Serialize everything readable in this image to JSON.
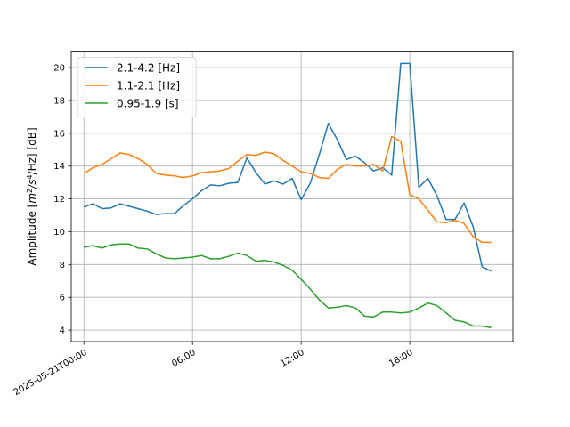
{
  "chart_data": {
    "type": "line",
    "title": "",
    "xlabel": "",
    "ylabel": "Amplitude [m²/s⁴/Hz] [dB]",
    "ylabel_parts": {
      "a": "Amplitude [",
      "b": "m",
      "c": "2",
      "d": "/s",
      "e": "4",
      "f": "/Hz] [dB]"
    },
    "grid": true,
    "legend_position": "top-left",
    "x_unit": "hours after 2025-05-21T00:00",
    "x_ticks": [
      {
        "value": 0,
        "label": "2025-05-21T00:00"
      },
      {
        "value": 6,
        "label": "06:00"
      },
      {
        "value": 12,
        "label": "12:00"
      },
      {
        "value": 18,
        "label": "18:00"
      }
    ],
    "y_ticks": [
      4,
      6,
      8,
      10,
      12,
      14,
      16,
      18,
      20
    ],
    "xlim": [
      -0.7,
      23.7
    ],
    "ylim": [
      3.3,
      21.0
    ],
    "x": [
      0,
      0.5,
      1,
      1.5,
      2,
      2.5,
      3,
      3.5,
      4,
      4.5,
      5,
      5.5,
      6,
      6.5,
      7,
      7.5,
      8,
      8.5,
      9,
      9.5,
      10,
      10.5,
      11,
      11.5,
      12,
      12.5,
      13,
      13.5,
      14,
      14.5,
      15,
      15.5,
      16,
      16.5,
      17,
      17.5,
      18,
      18.5,
      19,
      19.5,
      20,
      20.5,
      21,
      21.5,
      22,
      22.5
    ],
    "series": [
      {
        "name": "2.1-4.2 [Hz]",
        "color": "#1f77b4",
        "values": [
          11.5,
          11.7,
          11.4,
          11.45,
          11.7,
          11.55,
          11.4,
          11.25,
          11.05,
          11.1,
          11.1,
          11.6,
          12.0,
          12.5,
          12.85,
          12.8,
          12.95,
          13.0,
          14.5,
          13.6,
          12.9,
          13.1,
          12.9,
          13.25,
          11.95,
          12.95,
          14.7,
          16.6,
          15.6,
          14.4,
          14.6,
          14.2,
          13.7,
          13.9,
          13.45,
          20.25,
          20.25,
          12.7,
          13.25,
          12.2,
          10.75,
          10.75,
          11.75,
          10.3,
          7.85,
          7.6
        ]
      },
      {
        "name": "1.1-2.1 [Hz]",
        "color": "#ff7f0e",
        "values": [
          13.55,
          13.9,
          14.1,
          14.45,
          14.8,
          14.7,
          14.45,
          14.1,
          13.55,
          13.45,
          13.4,
          13.3,
          13.4,
          13.6,
          13.65,
          13.7,
          13.85,
          14.3,
          14.7,
          14.65,
          14.85,
          14.75,
          14.35,
          14.0,
          13.65,
          13.55,
          13.3,
          13.25,
          13.8,
          14.1,
          14.0,
          14.0,
          14.1,
          13.7,
          15.8,
          15.5,
          12.25,
          12.0,
          11.3,
          10.6,
          10.55,
          10.7,
          10.5,
          9.7,
          9.35,
          9.35
        ]
      },
      {
        "name": "0.95-1.9 [s]",
        "color": "#2ca02c",
        "values": [
          9.05,
          9.15,
          9.0,
          9.2,
          9.25,
          9.25,
          9.0,
          8.95,
          8.65,
          8.4,
          8.35,
          8.4,
          8.45,
          8.55,
          8.35,
          8.35,
          8.5,
          8.7,
          8.55,
          8.2,
          8.25,
          8.15,
          7.95,
          7.65,
          7.1,
          6.5,
          5.85,
          5.35,
          5.4,
          5.5,
          5.35,
          4.85,
          4.8,
          5.1,
          5.1,
          5.05,
          5.1,
          5.35,
          5.65,
          5.5,
          5.05,
          4.6,
          4.5,
          4.25,
          4.25,
          4.15
        ]
      }
    ]
  }
}
